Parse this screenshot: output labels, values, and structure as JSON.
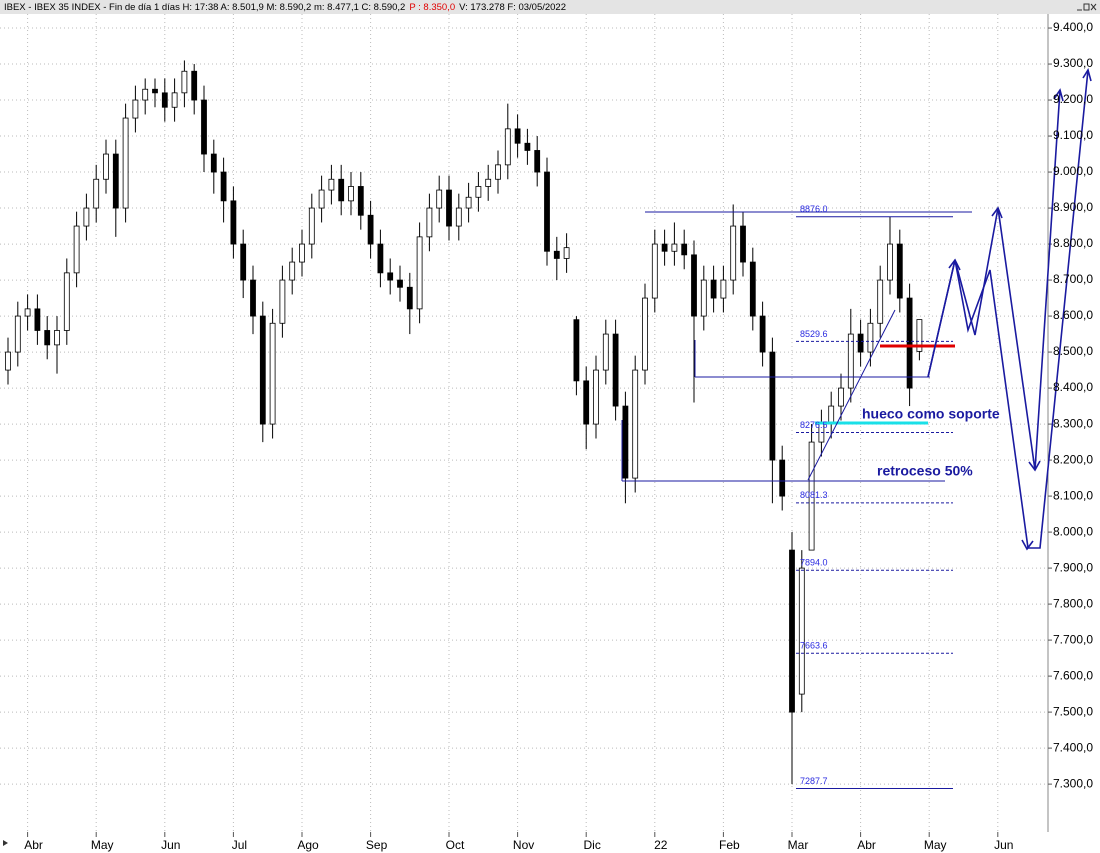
{
  "chart_data": {
    "type": "candlestick",
    "header": {
      "info": "IBEX - IBEX 35 INDEX - Fin de día 1 días  H: 17:38  A: 8.501,9  M: 8.590,2  m: 8.477,1  C: 8.590,2",
      "pivot": "P : 8.350,0",
      "tail": "V: 173.278  F: 03/05/2022"
    },
    "categories": [
      null,
      null,
      "Abr",
      null,
      null,
      null,
      null,
      null,
      null,
      "May",
      null,
      null,
      null,
      null,
      null,
      null,
      "Jun",
      null,
      null,
      null,
      null,
      null,
      null,
      "Jul",
      null,
      null,
      null,
      null,
      null,
      null,
      "Ago",
      null,
      null,
      null,
      null,
      null,
      null,
      "Sep",
      null,
      null,
      null,
      null,
      null,
      null,
      null,
      "Oct",
      null,
      null,
      null,
      null,
      null,
      null,
      "Nov",
      null,
      null,
      null,
      null,
      null,
      null,
      "Dic",
      null,
      null,
      null,
      null,
      null,
      null,
      "22",
      null,
      null,
      null,
      null,
      null,
      null,
      "Feb",
      null,
      null,
      null,
      null,
      null,
      null,
      "Mar",
      null,
      null,
      null,
      null,
      null,
      null,
      "Abr",
      null,
      null,
      null,
      null,
      null,
      null,
      "May",
      null,
      null,
      null,
      null,
      null,
      null,
      "Jun"
    ],
    "candles": [
      [
        8450,
        8540,
        8410,
        8500
      ],
      [
        8500,
        8640,
        8460,
        8600
      ],
      [
        8600,
        8660,
        8560,
        8620
      ],
      [
        8620,
        8660,
        8520,
        8560
      ],
      [
        8560,
        8600,
        8480,
        8520
      ],
      [
        8520,
        8600,
        8440,
        8560
      ],
      [
        8560,
        8760,
        8520,
        8720
      ],
      [
        8720,
        8890,
        8680,
        8850
      ],
      [
        8850,
        8940,
        8810,
        8900
      ],
      [
        8900,
        9020,
        8860,
        8980
      ],
      [
        8980,
        9090,
        8940,
        9050
      ],
      [
        9050,
        9090,
        8820,
        8900
      ],
      [
        8900,
        9190,
        8860,
        9150
      ],
      [
        9150,
        9240,
        9110,
        9200
      ],
      [
        9200,
        9260,
        9160,
        9230
      ],
      [
        9230,
        9260,
        9180,
        9220
      ],
      [
        9220,
        9260,
        9140,
        9180
      ],
      [
        9180,
        9260,
        9140,
        9220
      ],
      [
        9220,
        9310,
        9180,
        9280
      ],
      [
        9280,
        9300,
        9160,
        9200
      ],
      [
        9200,
        9240,
        9000,
        9050
      ],
      [
        9050,
        9090,
        8940,
        9000
      ],
      [
        9000,
        9040,
        8860,
        8920
      ],
      [
        8920,
        8960,
        8760,
        8800
      ],
      [
        8800,
        8840,
        8650,
        8700
      ],
      [
        8700,
        8740,
        8550,
        8600
      ],
      [
        8600,
        8640,
        8250,
        8300
      ],
      [
        8300,
        8620,
        8260,
        8580
      ],
      [
        8580,
        8740,
        8540,
        8700
      ],
      [
        8700,
        8790,
        8660,
        8750
      ],
      [
        8750,
        8840,
        8710,
        8800
      ],
      [
        8800,
        8940,
        8760,
        8900
      ],
      [
        8900,
        8990,
        8860,
        8950
      ],
      [
        8950,
        9020,
        8910,
        8980
      ],
      [
        8980,
        9020,
        8880,
        8920
      ],
      [
        8920,
        9000,
        8880,
        8960
      ],
      [
        8960,
        9000,
        8840,
        8880
      ],
      [
        8880,
        8920,
        8760,
        8800
      ],
      [
        8800,
        8840,
        8680,
        8720
      ],
      [
        8720,
        8760,
        8660,
        8700
      ],
      [
        8700,
        8740,
        8640,
        8680
      ],
      [
        8680,
        8720,
        8550,
        8620
      ],
      [
        8620,
        8860,
        8580,
        8820
      ],
      [
        8820,
        8940,
        8780,
        8900
      ],
      [
        8900,
        8990,
        8860,
        8950
      ],
      [
        8950,
        8990,
        8810,
        8850
      ],
      [
        8850,
        8940,
        8810,
        8900
      ],
      [
        8900,
        8970,
        8860,
        8930
      ],
      [
        8930,
        9000,
        8890,
        8960
      ],
      [
        8960,
        9020,
        8920,
        8980
      ],
      [
        8980,
        9060,
        8940,
        9020
      ],
      [
        9020,
        9190,
        8980,
        9120
      ],
      [
        9120,
        9160,
        9040,
        9080
      ],
      [
        9080,
        9120,
        9020,
        9060
      ],
      [
        9060,
        9100,
        8960,
        9000
      ],
      [
        9000,
        9040,
        8740,
        8780
      ],
      [
        8780,
        8820,
        8700,
        8760
      ],
      [
        8760,
        8830,
        8720,
        8790
      ],
      [
        8590,
        8600,
        8380,
        8420
      ],
      [
        8420,
        8460,
        8230,
        8300
      ],
      [
        8300,
        8490,
        8260,
        8450
      ],
      [
        8450,
        8590,
        8410,
        8550
      ],
      [
        8550,
        8590,
        8310,
        8350
      ],
      [
        8350,
        8390,
        8080,
        8150
      ],
      [
        8150,
        8490,
        8110,
        8450
      ],
      [
        8450,
        8690,
        8410,
        8650
      ],
      [
        8650,
        8840,
        8610,
        8800
      ],
      [
        8800,
        8840,
        8740,
        8780
      ],
      [
        8780,
        8860,
        8740,
        8800
      ],
      [
        8800,
        8840,
        8730,
        8770
      ],
      [
        8770,
        8810,
        8360,
        8600
      ],
      [
        8600,
        8740,
        8560,
        8700
      ],
      [
        8700,
        8740,
        8610,
        8650
      ],
      [
        8650,
        8740,
        8610,
        8700
      ],
      [
        8700,
        8910,
        8660,
        8850
      ],
      [
        8850,
        8890,
        8710,
        8750
      ],
      [
        8750,
        8790,
        8560,
        8600
      ],
      [
        8600,
        8640,
        8460,
        8500
      ],
      [
        8500,
        8540,
        8080,
        8200
      ],
      [
        8200,
        8240,
        8060,
        8100
      ],
      [
        7950,
        8000,
        7300,
        7500
      ],
      [
        7550,
        7950,
        7500,
        7900
      ],
      [
        7950,
        8300,
        7950,
        8250
      ],
      [
        8250,
        8340,
        8210,
        8300
      ],
      [
        8300,
        8390,
        8260,
        8350
      ],
      [
        8350,
        8440,
        8310,
        8400
      ],
      [
        8400,
        8620,
        8360,
        8550
      ],
      [
        8550,
        8590,
        8460,
        8500
      ],
      [
        8500,
        8620,
        8460,
        8580
      ],
      [
        8580,
        8740,
        8540,
        8700
      ],
      [
        8700,
        8876,
        8660,
        8800
      ],
      [
        8800,
        8840,
        8610,
        8650
      ],
      [
        8650,
        8690,
        8350,
        8400
      ],
      [
        8501.9,
        8590.2,
        8477.1,
        8590.2
      ],
      null,
      null,
      null,
      null,
      null,
      null,
      null,
      null
    ],
    "fib_levels": [
      {
        "value": 8876.0,
        "label": "8876.0"
      },
      {
        "value": 8529.6,
        "label": "8529.6"
      },
      {
        "value": 8276.5,
        "label": "8276.5"
      },
      {
        "value": 8081.3,
        "label": "8081.3"
      },
      {
        "value": 7894.0,
        "label": "7894.0"
      },
      {
        "value": 7663.6,
        "label": "7663.6"
      },
      {
        "value": 7287.7,
        "label": "7287.7"
      }
    ],
    "annotations": [
      "hueco como soporte",
      "retroceso 50%"
    ],
    "ylim": [
      7167,
      9439
    ],
    "yticks": [
      {
        "value": 9400,
        "label": "9.400,0"
      },
      {
        "value": 9300,
        "label": "9.300,0"
      },
      {
        "value": 9200,
        "label": "9.200,0"
      },
      {
        "value": 9100,
        "label": "9.100,0"
      },
      {
        "value": 9000,
        "label": "9.000,0"
      },
      {
        "value": 8900,
        "label": "8.900,0"
      },
      {
        "value": 8800,
        "label": "8.800,0"
      },
      {
        "value": 8700,
        "label": "8.700,0"
      },
      {
        "value": 8600,
        "label": "8.600,0"
      },
      {
        "value": 8500,
        "label": "8.500,0"
      },
      {
        "value": 8400,
        "label": "8.400,0"
      },
      {
        "value": 8300,
        "label": "8.300,0"
      },
      {
        "value": 8200,
        "label": "8.200,0"
      },
      {
        "value": 8100,
        "label": "8.100,0"
      },
      {
        "value": 8000,
        "label": "8.000,0"
      },
      {
        "value": 7900,
        "label": "7.900,0"
      },
      {
        "value": 7800,
        "label": "7.800,0"
      },
      {
        "value": 7700,
        "label": "7.700,0"
      },
      {
        "value": 7600,
        "label": "7.600,0"
      },
      {
        "value": 7500,
        "label": "7.500,0"
      },
      {
        "value": 7400,
        "label": "7.400,0"
      },
      {
        "value": 7300,
        "label": "7.300,0"
      }
    ],
    "grid": true
  }
}
